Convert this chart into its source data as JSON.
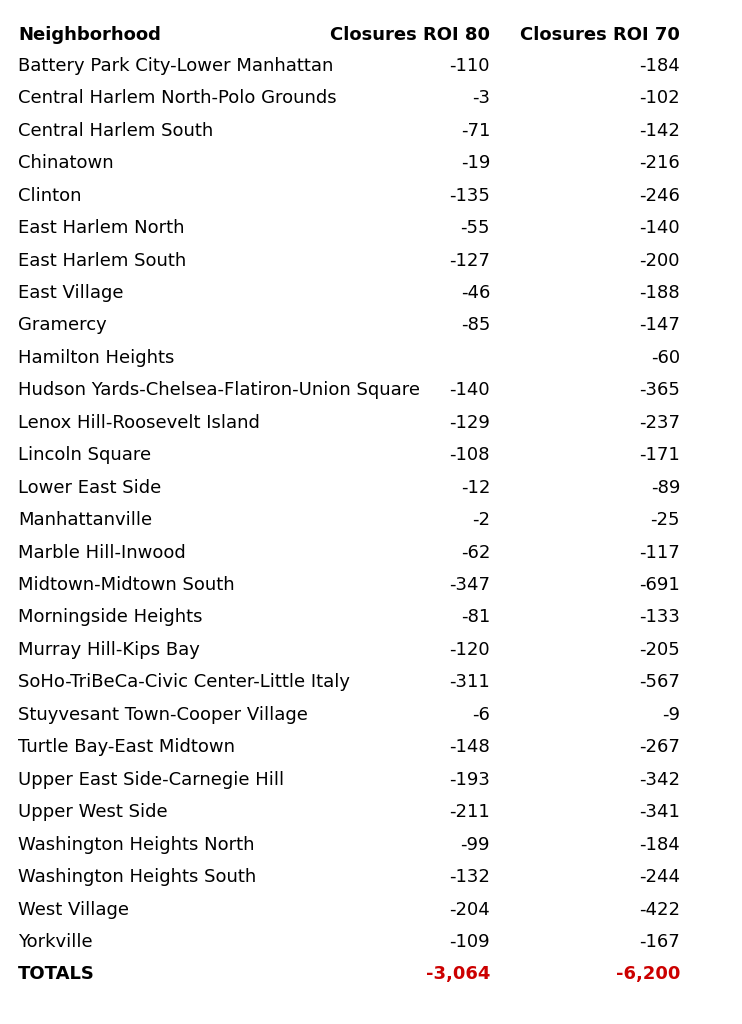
{
  "neighborhoods": [
    "Battery Park City-Lower Manhattan",
    "Central Harlem North-Polo Grounds",
    "Central Harlem South",
    "Chinatown",
    "Clinton",
    "East Harlem North",
    "East Harlem South",
    "East Village",
    "Gramercy",
    "Hamilton Heights",
    "Hudson Yards-Chelsea-Flatiron-Union Square",
    "Lenox Hill-Roosevelt Island",
    "Lincoln Square",
    "Lower East Side",
    "Manhattanville",
    "Marble Hill-Inwood",
    "Midtown-Midtown South",
    "Morningside Heights",
    "Murray Hill-Kips Bay",
    "SoHo-TriBeCa-Civic Center-Little Italy",
    "Stuyvesant Town-Cooper Village",
    "Turtle Bay-East Midtown",
    "Upper East Side-Carnegie Hill",
    "Upper West Side",
    "Washington Heights North",
    "Washington Heights South",
    "West Village",
    "Yorkville"
  ],
  "roi80": [
    -110,
    -3,
    -71,
    -19,
    -135,
    -55,
    -127,
    -46,
    -85,
    null,
    -140,
    -129,
    -108,
    -12,
    -2,
    -62,
    -347,
    -81,
    -120,
    -311,
    -6,
    -148,
    -193,
    -211,
    -99,
    -132,
    -204,
    -109
  ],
  "roi70": [
    -184,
    -102,
    -142,
    -216,
    -246,
    -140,
    -200,
    -188,
    -147,
    -60,
    -365,
    -237,
    -171,
    -89,
    -25,
    -117,
    -691,
    -133,
    -205,
    -567,
    -9,
    -267,
    -342,
    -341,
    -184,
    -244,
    -422,
    -167
  ],
  "total_roi80": "-3,064",
  "total_roi70": "-6,200",
  "header_neighborhood": "Neighborhood",
  "header_roi80": "Closures ROI 80",
  "header_roi70": "Closures ROI 70",
  "total_label": "TOTALS",
  "bg_color": "#ffffff",
  "text_color": "#000000",
  "header_color": "#000000",
  "total_value_color": "#cc0000",
  "font_size": 13,
  "header_font_size": 13
}
